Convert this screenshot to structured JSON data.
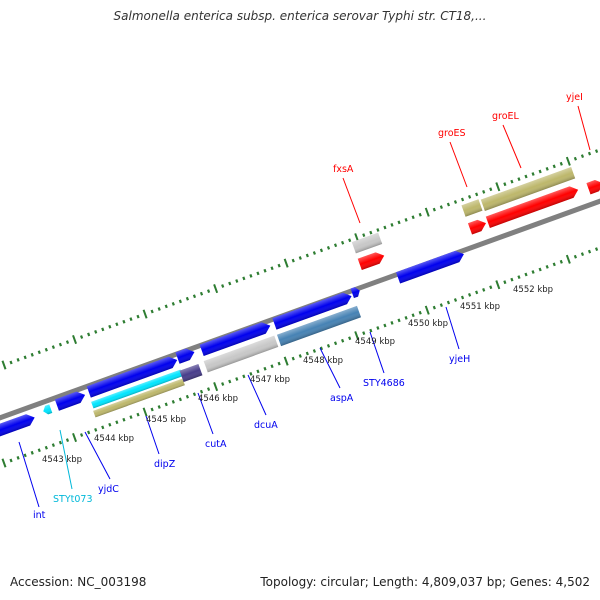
{
  "title": "Salmonella enterica subsp. enterica serovar Typhi str. CT18,...",
  "accession": "Accession: NC_003198",
  "summary": "Topology: circular; Length: 4,809,037 bp; Genes: 4,502",
  "colors": {
    "blue": "#0000ee",
    "red": "#ff0000",
    "khaki": "#bdb76b",
    "light_grey": "#c8c8c8",
    "steel_blue": "#4682b4",
    "cyan": "#00e5ff",
    "dark_slate_blue": "#483d8b",
    "tick_green": "#2e7d32",
    "backbone": "#808080"
  },
  "kbp_ticks": [
    {
      "kbp": 4543,
      "label": "4543 kbp"
    },
    {
      "kbp": 4544,
      "label": "4544 kbp"
    },
    {
      "kbp": 4545,
      "label": "4545 kbp"
    },
    {
      "kbp": 4546,
      "label": "4546 kbp"
    },
    {
      "kbp": 4547,
      "label": "4547 kbp"
    },
    {
      "kbp": 4548,
      "label": "4548 kbp"
    },
    {
      "kbp": 4549,
      "label": "4549 kbp"
    },
    {
      "kbp": 4550,
      "label": "4550 kbp"
    },
    {
      "kbp": 4551,
      "label": "4551 kbp"
    },
    {
      "kbp": 4552,
      "label": "4552 kbp"
    }
  ],
  "genes": [
    {
      "name": "int",
      "label_color": "#0000ee"
    },
    {
      "name": "STYt073",
      "label_color": "#00b8d9"
    },
    {
      "name": "yjdC",
      "label_color": "#0000ee"
    },
    {
      "name": "dipZ",
      "label_color": "#0000ee"
    },
    {
      "name": "cutA",
      "label_color": "#0000ee"
    },
    {
      "name": "dcuA",
      "label_color": "#0000ee"
    },
    {
      "name": "aspA",
      "label_color": "#0000ee"
    },
    {
      "name": "STY4686",
      "label_color": "#0000ee"
    },
    {
      "name": "yjeH",
      "label_color": "#0000ee"
    },
    {
      "name": "fxsA",
      "label_color": "#ff0000"
    },
    {
      "name": "groES",
      "label_color": "#ff0000"
    },
    {
      "name": "groEL",
      "label_color": "#ff0000"
    },
    {
      "name": "yjeI",
      "label_color": "#ff0000"
    }
  ]
}
